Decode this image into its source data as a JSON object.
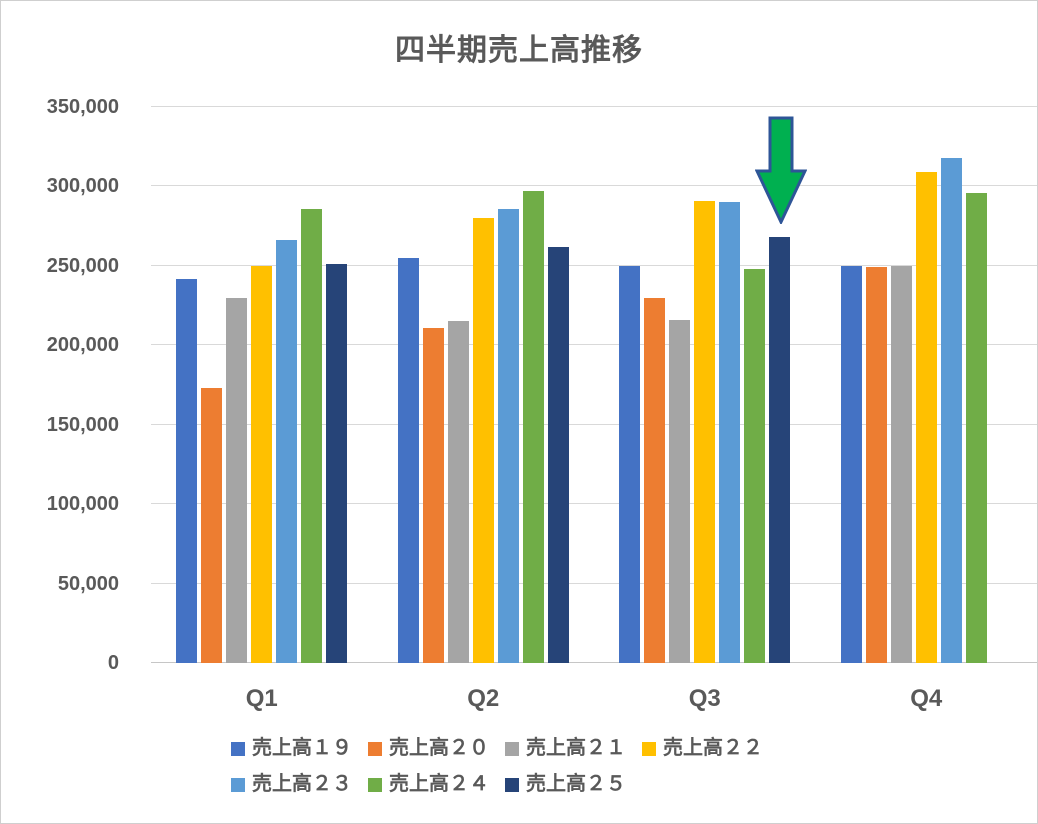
{
  "window": {
    "background": "#ffffff",
    "border_color": "#cfcfcf"
  },
  "chart_data": {
    "type": "bar",
    "title": "四半期売上高推移",
    "categories": [
      "Q1",
      "Q2",
      "Q3",
      "Q4"
    ],
    "series": [
      {
        "id": "sales19",
        "name": "売上高１９",
        "color": "#4472C4",
        "values": [
          242000,
          255000,
          250000,
          250000
        ]
      },
      {
        "id": "sales20",
        "name": "売上高２０",
        "color": "#ED7D31",
        "values": [
          173000,
          211000,
          230000,
          249000
        ]
      },
      {
        "id": "sales21",
        "name": "売上高２１",
        "color": "#A5A5A5",
        "values": [
          230000,
          215000,
          216000,
          250000
        ]
      },
      {
        "id": "sales22",
        "name": "売上高２２",
        "color": "#FFC000",
        "values": [
          250000,
          280000,
          291000,
          309000
        ]
      },
      {
        "id": "sales23",
        "name": "売上高２３",
        "color": "#5B9BD5",
        "values": [
          266000,
          286000,
          290000,
          318000
        ]
      },
      {
        "id": "sales24",
        "name": "売上高２４",
        "color": "#70AD47",
        "values": [
          286000,
          297000,
          248000,
          296000
        ]
      },
      {
        "id": "sales25",
        "name": "売上高２５",
        "color": "#264478",
        "values": [
          251000,
          262000,
          268000,
          null
        ]
      }
    ],
    "xlabel": "",
    "ylabel": "",
    "ylim": [
      0,
      350000
    ],
    "ytick_step": 50000,
    "ytick_labels": [
      "0",
      "50,000",
      "100,000",
      "150,000",
      "200,000",
      "250,000",
      "300,000",
      "350,000"
    ],
    "grid": true,
    "legend_position": "bottom",
    "legend_rows": [
      [
        0,
        1,
        2,
        3
      ],
      [
        4,
        5,
        6
      ]
    ],
    "annotation": {
      "shape": "down-block-arrow",
      "target_category": "Q3",
      "target_series_id": "sales25",
      "fill": "#00B050",
      "outline": "#2E5597"
    },
    "style": {
      "text_color": "#595959",
      "gridline_color": "#d9d9d9",
      "axis_line_color": "#c6c6c6"
    }
  }
}
